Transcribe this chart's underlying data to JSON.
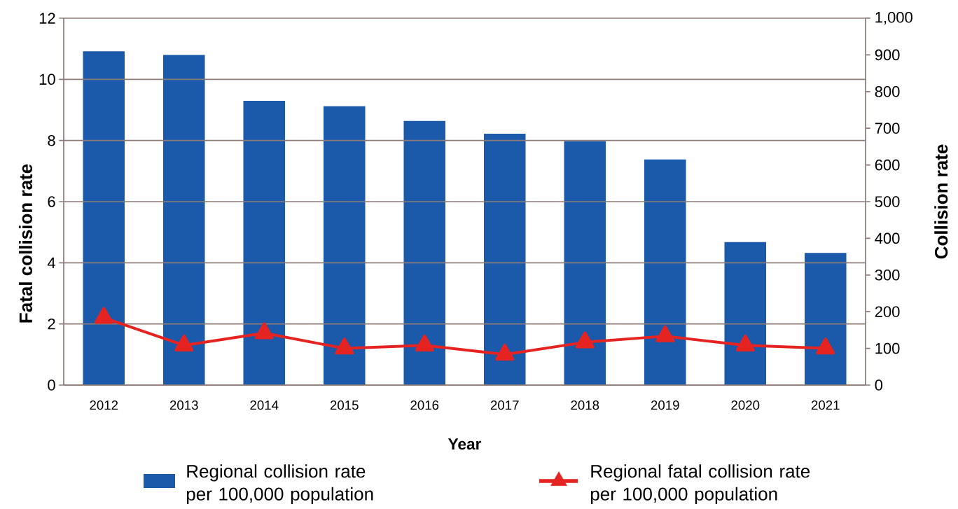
{
  "chart_data": {
    "type": "bar",
    "xlabel": "Year",
    "ylabel": "Fatal collision rate",
    "y2label": "Collision rate",
    "categories": [
      "2012",
      "2013",
      "2014",
      "2015",
      "2016",
      "2017",
      "2018",
      "2019",
      "2020",
      "2021"
    ],
    "series": [
      {
        "name": "Regional collision rate per 100,000 population",
        "axis": "y2",
        "color": "#1b5aab",
        "values": [
          910,
          900,
          775,
          760,
          720,
          685,
          665,
          615,
          390,
          360
        ]
      },
      {
        "name": "Regional fatal collision rate per 100,000 population",
        "type": "line",
        "axis": "y",
        "color": "#e52421",
        "values": [
          2.2,
          1.3,
          1.7,
          1.2,
          1.3,
          1.0,
          1.4,
          1.6,
          1.3,
          1.2
        ]
      }
    ],
    "ylim": [
      0,
      12
    ],
    "yticks": [
      0,
      2,
      4,
      6,
      8,
      10,
      12
    ],
    "y2lim": [
      0,
      1000
    ],
    "y2ticks": [
      0,
      100,
      200,
      300,
      400,
      500,
      600,
      700,
      800,
      900,
      {
        "value": 1000,
        "label": "1,000"
      }
    ],
    "grid": "y",
    "legend": "bottom",
    "marker": "triangle",
    "line_style": "solid"
  }
}
